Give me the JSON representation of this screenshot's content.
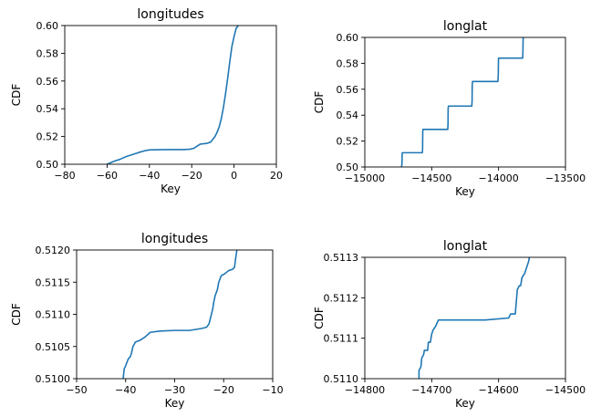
{
  "chart_data": [
    {
      "type": "line",
      "title": "longitudes",
      "xlabel": "Key",
      "ylabel": "CDF",
      "xlim": [
        -80,
        20
      ],
      "ylim": [
        0.5,
        0.6
      ],
      "xticks": [
        "−80",
        "−60",
        "−40",
        "−20",
        "0",
        "20"
      ],
      "yticks": [
        "0.50",
        "0.52",
        "0.54",
        "0.56",
        "0.58",
        "0.60"
      ],
      "color": "#1f77b4",
      "series": [
        {
          "x": [
            -60,
            -57,
            -54,
            -51,
            -48,
            -45,
            -42,
            -40,
            -36,
            -30,
            -24,
            -21,
            -19,
            -16,
            -13,
            -11,
            -9,
            -8,
            -7,
            -6,
            -5,
            -4,
            -3,
            -2,
            -1,
            0,
            1,
            2,
            2.5
          ],
          "y": [
            0.5,
            0.502,
            0.5035,
            0.5055,
            0.507,
            0.5085,
            0.5098,
            0.5103,
            0.5105,
            0.5106,
            0.5106,
            0.5108,
            0.5115,
            0.5145,
            0.515,
            0.516,
            0.52,
            0.523,
            0.527,
            0.533,
            0.541,
            0.551,
            0.562,
            0.574,
            0.585,
            0.592,
            0.598,
            0.6,
            0.6015
          ]
        }
      ]
    },
    {
      "type": "line",
      "title": "longlat",
      "xlabel": "Key",
      "ylabel": "CDF",
      "xlim": [
        -15000,
        -13500
      ],
      "ylim": [
        0.5,
        0.6
      ],
      "xticks": [
        "−15000",
        "−14500",
        "−14000",
        "−13500"
      ],
      "yticks": [
        "0.50",
        "0.52",
        "0.54",
        "0.56",
        "0.58",
        "0.60"
      ],
      "color": "#1f77b4",
      "series": [
        {
          "x": [
            -14725,
            -14722,
            -14721,
            -14720,
            -14570,
            -14568,
            -14567,
            -14565,
            -14380,
            -14378,
            -14377,
            -14375,
            -14200,
            -14198,
            -14197,
            -14195,
            -14005,
            -14002,
            -14001,
            -14000,
            -13820,
            -13818,
            -13817,
            -13816
          ],
          "y": [
            0.5,
            0.503,
            0.509,
            0.511,
            0.511,
            0.514,
            0.527,
            0.529,
            0.529,
            0.533,
            0.545,
            0.547,
            0.547,
            0.551,
            0.563,
            0.566,
            0.566,
            0.572,
            0.582,
            0.584,
            0.584,
            0.589,
            0.597,
            0.6
          ]
        }
      ]
    },
    {
      "type": "line",
      "title": "longitudes",
      "xlabel": "Key",
      "ylabel": "CDF",
      "xlim": [
        -50,
        -10
      ],
      "ylim": [
        0.51,
        0.512
      ],
      "xticks": [
        "−50",
        "−40",
        "−30",
        "−20",
        "−10"
      ],
      "yticks": [
        "0.5100",
        "0.5105",
        "0.5110",
        "0.5115",
        "0.5120"
      ],
      "color": "#1f77b4",
      "series": [
        {
          "x": [
            -40.5,
            -40.3,
            -40,
            -39.5,
            -39,
            -38.8,
            -38.5,
            -38,
            -37,
            -36,
            -35,
            -33,
            -30,
            -27,
            -24.5,
            -23.5,
            -23,
            -22.5,
            -22.2,
            -22,
            -21.7,
            -21.3,
            -21,
            -20.5,
            -19.8,
            -19,
            -18.2,
            -17.8,
            -17.5,
            -17.3
          ],
          "y": [
            0.51,
            0.51015,
            0.5102,
            0.5103,
            0.51035,
            0.5104,
            0.5105,
            0.51057,
            0.5106,
            0.51065,
            0.51072,
            0.51074,
            0.51075,
            0.51075,
            0.51078,
            0.5108,
            0.51085,
            0.511,
            0.5111,
            0.5112,
            0.5113,
            0.51138,
            0.5115,
            0.5116,
            0.51163,
            0.51168,
            0.5117,
            0.51173,
            0.5119,
            0.512
          ]
        }
      ]
    },
    {
      "type": "line",
      "title": "longlat",
      "xlabel": "Key",
      "ylabel": "CDF",
      "xlim": [
        -14800,
        -14500
      ],
      "ylim": [
        0.511,
        0.5113
      ],
      "xticks": [
        "−14800",
        "−14700",
        "−14600",
        "−14500"
      ],
      "yticks": [
        "0.5110",
        "0.5111",
        "0.5112",
        "0.5113"
      ],
      "color": "#1f77b4",
      "series": [
        {
          "x": [
            -14719,
            -14719,
            -14716,
            -14715,
            -14712,
            -14711,
            -14706,
            -14705,
            -14702,
            -14700,
            -14698,
            -14694,
            -14690,
            -14660,
            -14620,
            -14585,
            -14582,
            -14578,
            -14575,
            -14573,
            -14572,
            -14569,
            -14567,
            -14565,
            -14561,
            -14559,
            -14555,
            -14554
          ],
          "y": [
            0.511,
            0.51102,
            0.51103,
            0.51105,
            0.51106,
            0.51107,
            0.51107,
            0.51109,
            0.51109,
            0.51111,
            0.51112,
            0.51113,
            0.511145,
            0.511145,
            0.511145,
            0.51115,
            0.51116,
            0.51116,
            0.51116,
            0.5112,
            0.51122,
            0.51123,
            0.51123,
            0.51125,
            0.51126,
            0.51127,
            0.51129,
            0.5113
          ]
        }
      ]
    }
  ]
}
